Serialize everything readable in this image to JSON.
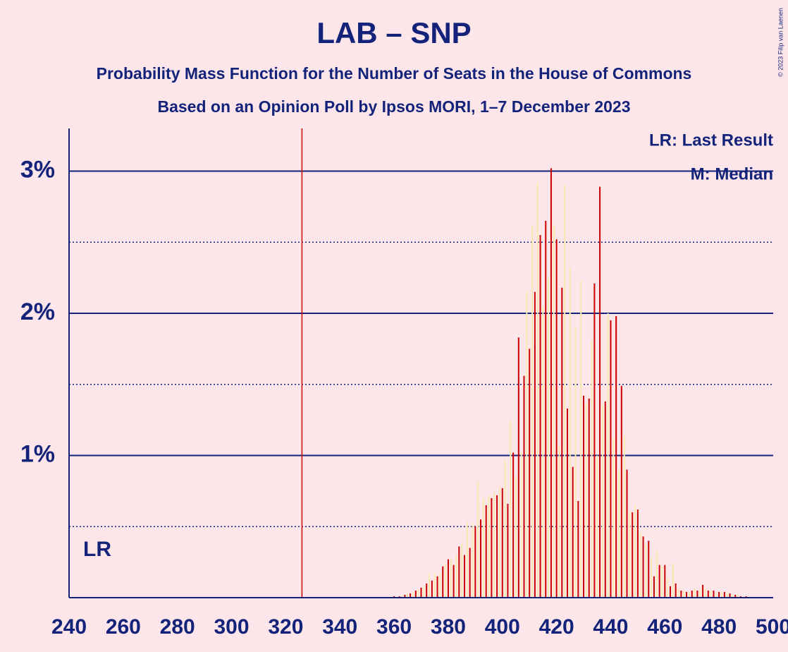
{
  "chart_data": {
    "type": "bar",
    "title": "LAB – SNP",
    "subtitle": "Probability Mass Function for the Number of Seats in the House of Commons",
    "subtitle2": "Based on an Opinion Poll by Ipsos MORI, 1–7 December 2023",
    "copyright": "© 2023 Filip van Laenen",
    "legend": [
      "LR: Last Result",
      "M: Median"
    ],
    "last_result": 326,
    "last_result_label": "LR",
    "last_result_color": "#cc0000",
    "colors": [
      "#cc0000",
      "#f8e9b0"
    ],
    "xlim": [
      240,
      500
    ],
    "xticks": [
      240,
      260,
      280,
      300,
      320,
      340,
      360,
      380,
      400,
      420,
      440,
      460,
      480,
      500
    ],
    "ylim": [
      0,
      3.3
    ],
    "yticks": [
      {
        "value": 1,
        "label": "1%"
      },
      {
        "value": 2,
        "label": "2%"
      },
      {
        "value": 3,
        "label": "3%"
      }
    ],
    "minor_yticks": [
      0.5,
      1.5,
      2.5
    ],
    "x": [
      360,
      361,
      362,
      363,
      364,
      365,
      366,
      367,
      368,
      369,
      370,
      371,
      372,
      373,
      374,
      375,
      376,
      377,
      378,
      379,
      380,
      381,
      382,
      383,
      384,
      385,
      386,
      387,
      388,
      389,
      390,
      391,
      392,
      393,
      394,
      395,
      396,
      397,
      398,
      399,
      400,
      401,
      402,
      403,
      404,
      405,
      406,
      407,
      408,
      409,
      410,
      411,
      412,
      413,
      414,
      415,
      416,
      417,
      418,
      419,
      420,
      421,
      422,
      423,
      424,
      425,
      426,
      427,
      428,
      429,
      430,
      431,
      432,
      433,
      434,
      435,
      436,
      437,
      438,
      439,
      440,
      441,
      442,
      443,
      444,
      445,
      446,
      447,
      448,
      449,
      450,
      451,
      452,
      453,
      454,
      455,
      456,
      457,
      458,
      459,
      460,
      461,
      462,
      463,
      464,
      465,
      466,
      467,
      468,
      469,
      470,
      471,
      472,
      473,
      474,
      475,
      476,
      477,
      478,
      479,
      480,
      481,
      482,
      483,
      484,
      485,
      486,
      487,
      488,
      489,
      490
    ],
    "values": [
      0.01,
      0.01,
      0.01,
      0.02,
      0.02,
      0.03,
      0.03,
      0.04,
      0.05,
      0.06,
      0.07,
      0.08,
      0.1,
      0.17,
      0.12,
      0.17,
      0.15,
      0.17,
      0.22,
      0.24,
      0.27,
      0.27,
      0.23,
      0.3,
      0.36,
      0.38,
      0.3,
      0.53,
      0.35,
      0.52,
      0.5,
      0.82,
      0.55,
      0.7,
      0.65,
      0.72,
      0.7,
      0.74,
      0.72,
      0.78,
      0.77,
      0.97,
      0.66,
      1.25,
      1.02,
      0.85,
      1.83,
      1.02,
      1.56,
      2.15,
      1.75,
      2.62,
      2.15,
      2.92,
      2.55,
      2.05,
      2.65,
      2.25,
      3.02,
      2.62,
      2.52,
      1.07,
      2.18,
      2.9,
      1.33,
      2.32,
      0.92,
      1.9,
      0.68,
      2.23,
      1.42,
      1.37,
      1.4,
      1.81,
      2.21,
      1.0,
      2.89,
      1.36,
      1.38,
      2.0,
      1.95,
      1.12,
      1.98,
      0.9,
      1.49,
      1.14,
      0.9,
      0.6,
      0.6,
      0.65,
      0.62,
      0.46,
      0.43,
      0.38,
      0.4,
      0.28,
      0.15,
      0.33,
      0.23,
      0.22,
      0.23,
      0.14,
      0.08,
      0.24,
      0.1,
      0.06,
      0.05,
      0.05,
      0.04,
      0.04,
      0.05,
      0.07,
      0.05,
      0.06,
      0.09,
      0.06,
      0.05,
      0.05,
      0.05,
      0.04,
      0.04,
      0.04,
      0.04,
      0.03,
      0.03,
      0.02,
      0.02,
      0.02,
      0.01,
      0.01,
      0.01
    ]
  }
}
